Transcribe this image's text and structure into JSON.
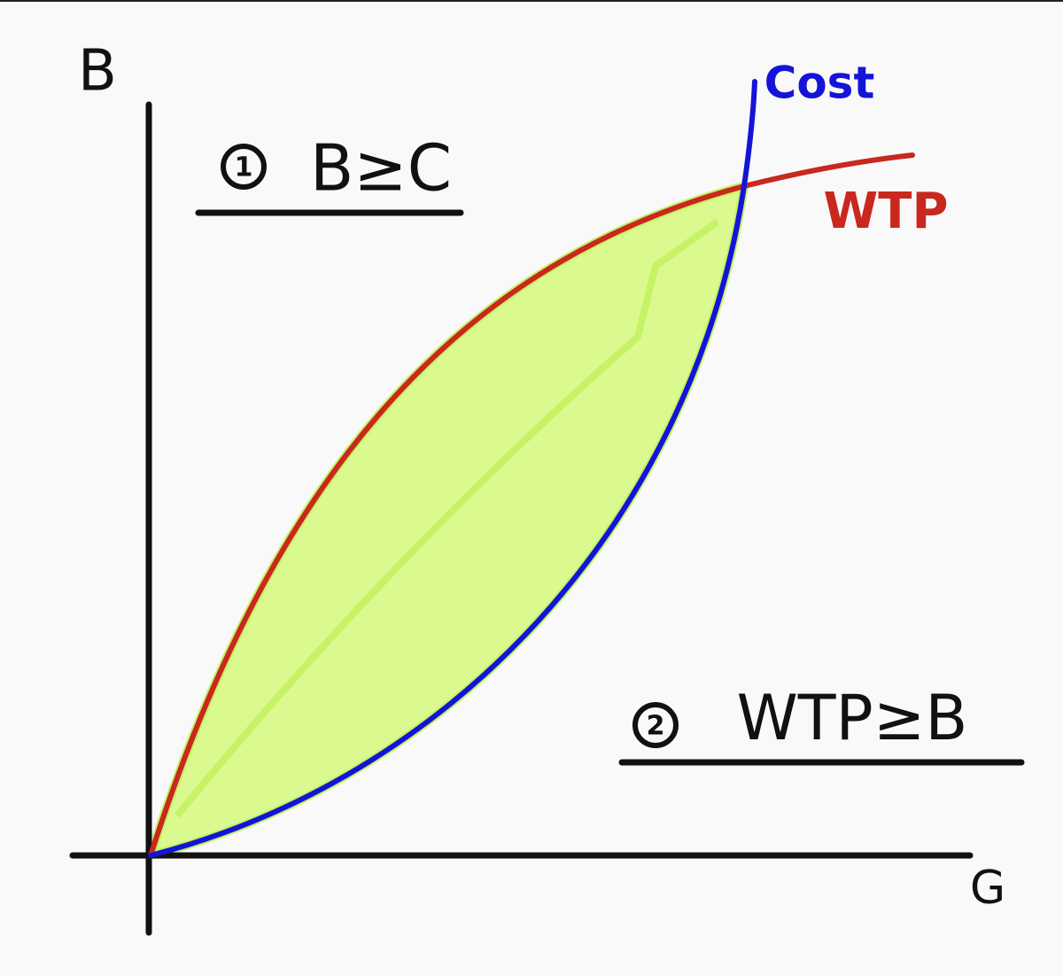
{
  "axes": {
    "y_label": "B",
    "x_label": "G"
  },
  "curves": {
    "cost": "Cost",
    "wtp": "WTP"
  },
  "conditions": [
    {
      "number": "1",
      "text": "B≥C"
    },
    {
      "number": "2",
      "text": "WTP≥B"
    }
  ]
}
